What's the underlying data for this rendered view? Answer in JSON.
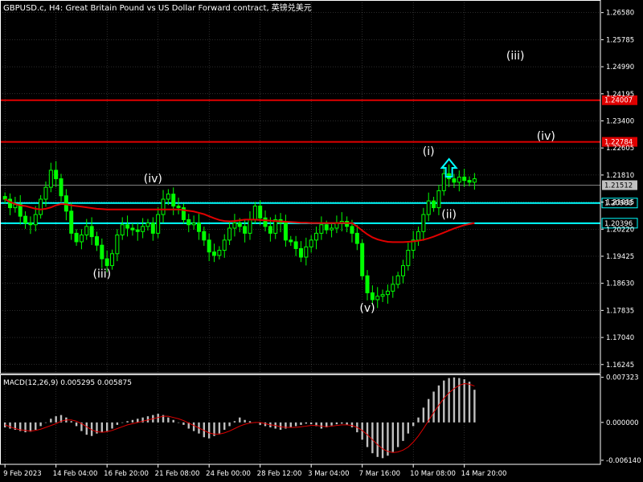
{
  "header": {
    "title": "GBPUSD.c, H4:  Great Britain Pound vs US Dollar Forward contract, 英镑兑美元"
  },
  "macd_header": {
    "label": "MACD(12,26,9) 0.005295 0.005875"
  },
  "colors": {
    "background": "#000000",
    "bull_candle": "#00ff00",
    "bear_candle": "#00ff00",
    "grid": "#ffffff",
    "ma_line": "#e00000",
    "red_level": "#e00000",
    "cyan_level": "#00ffff",
    "price_label": "#c0c0c0",
    "macd_hist": "#c0c0c0",
    "macd_signal": "#e00000",
    "arrow": "#00ffff"
  },
  "chart_data": [
    {
      "type": "candlestick",
      "symbol": "GBPUSD.c",
      "timeframe": "H4",
      "ylim": [
        1.1598,
        1.2695
      ],
      "y_ticks": [
        "1.26580",
        "1.25785",
        "1.24990",
        "1.24195",
        "1.23400",
        "1.22605",
        "1.21810",
        "1.21015",
        "1.20220",
        "1.19425",
        "1.18630",
        "1.17835",
        "1.17040",
        "1.16245"
      ],
      "x_ticks": [
        "9 Feb 2023",
        "14 Feb 04:00",
        "16 Feb 20:00",
        "21 Feb 08:00",
        "24 Feb 00:00",
        "28 Feb 12:00",
        "3 Mar 04:00",
        "7 Mar 16:00",
        "10 Mar 08:00",
        "14 Mar 20:00"
      ],
      "closes": [
        1.211,
        1.2085,
        1.2095,
        1.206,
        1.204,
        1.2035,
        1.2065,
        1.211,
        1.2145,
        1.2195,
        1.217,
        1.212,
        1.2075,
        1.201,
        1.1985,
        1.2005,
        1.203,
        1.2,
        1.1975,
        1.1935,
        1.1915,
        1.195,
        1.2005,
        1.2035,
        1.2025,
        1.202,
        1.2015,
        1.203,
        1.204,
        1.201,
        1.2065,
        1.211,
        1.2125,
        1.209,
        1.2085,
        1.205,
        1.2035,
        1.204,
        1.2015,
        1.199,
        1.1955,
        1.1945,
        1.196,
        1.199,
        1.2025,
        1.204,
        1.203,
        1.201,
        1.205,
        1.209,
        1.2055,
        1.203,
        1.201,
        1.205,
        1.204,
        1.199,
        1.1985,
        1.1965,
        1.194,
        1.197,
        1.199,
        1.201,
        1.2035,
        1.202,
        1.2025,
        1.204,
        1.2045,
        1.203,
        1.201,
        1.198,
        1.1885,
        1.1835,
        1.1815,
        1.1825,
        1.183,
        1.184,
        1.186,
        1.1885,
        1.1915,
        1.196,
        1.199,
        1.2015,
        1.2065,
        1.2105,
        1.2085,
        1.2135,
        1.2185,
        1.217,
        1.216,
        1.2175,
        1.2165,
        1.216,
        1.217
      ],
      "moving_average": [
        1.211,
        1.2102,
        1.2096,
        1.2092,
        1.209,
        1.2086,
        1.2082,
        1.208,
        1.2082,
        1.2086,
        1.2092,
        1.2096,
        1.2095,
        1.2092,
        1.209,
        1.2088,
        1.2086,
        1.2084,
        1.2082,
        1.2081,
        1.208,
        1.208,
        1.208,
        1.208,
        1.208,
        1.208,
        1.208,
        1.208,
        1.208,
        1.208,
        1.208,
        1.208,
        1.208,
        1.208,
        1.208,
        1.2078,
        1.2076,
        1.2074,
        1.207,
        1.2066,
        1.206,
        1.2054,
        1.2049,
        1.2046,
        1.2045,
        1.2046,
        1.2048,
        1.205,
        1.205,
        1.205,
        1.2049,
        1.2048,
        1.2047,
        1.2046,
        1.2045,
        1.2044,
        1.2043,
        1.2042,
        1.2041,
        1.2041,
        1.204,
        1.204,
        1.204,
        1.204,
        1.204,
        1.204,
        1.204,
        1.204,
        1.204,
        1.203,
        1.2018,
        1.2007,
        1.1998,
        1.1992,
        1.1988,
        1.1985,
        1.1984,
        1.1984,
        1.1984,
        1.1985,
        1.1986,
        1.1988,
        1.1991,
        1.1995,
        1.2,
        1.2006,
        1.2012,
        1.2018,
        1.2024,
        1.2029,
        1.2034,
        1.2037,
        1.204
      ],
      "levels": [
        {
          "price": 1.24007,
          "label": "1.24007",
          "color": "#e00000"
        },
        {
          "price": 1.22784,
          "label": "1.22784",
          "color": "#e00000"
        },
        {
          "price": 1.20988,
          "label": "1.20988",
          "color": "#00ffff"
        },
        {
          "price": 1.20396,
          "label": "1.20396",
          "color": "#00ffff"
        }
      ],
      "current_price": {
        "price": 1.21512,
        "label": "1.21512"
      },
      "annotations": [
        {
          "text": "(iv)",
          "bar": 29,
          "price": 1.216
        },
        {
          "text": "(iii)",
          "bar": 19,
          "price": 1.188
        },
        {
          "text": "(v)",
          "bar": 71,
          "price": 1.178
        },
        {
          "text": "(i)",
          "bar": 83,
          "price": 1.224
        },
        {
          "text": "(ii)",
          "bar": 87,
          "price": 1.2055
        },
        {
          "text": "(iii)",
          "bar": 100,
          "price": 1.252
        },
        {
          "text": "(iv)",
          "bar": 106,
          "price": 1.2285
        }
      ],
      "arrow": {
        "bar": 87,
        "price": 1.2195,
        "direction": "up"
      }
    },
    {
      "type": "bar",
      "name": "MACD(12,26,9)",
      "ylim": [
        -0.0068,
        0.0078
      ],
      "y_ticks": [
        "0.007323",
        "0.000000",
        "-0.006140"
      ],
      "values": [
        -0.0008,
        -0.001,
        -0.0012,
        -0.0014,
        -0.0016,
        -0.0015,
        -0.0012,
        -0.0006,
        0.0,
        0.0006,
        0.001,
        0.0012,
        0.0008,
        0.0002,
        -0.0006,
        -0.0014,
        -0.002,
        -0.0022,
        -0.0018,
        -0.0016,
        -0.0014,
        -0.001,
        -0.0004,
        0.0,
        0.0002,
        0.0004,
        0.0006,
        0.0008,
        0.001,
        0.0012,
        0.0014,
        0.0012,
        0.0008,
        0.0004,
        0.0,
        -0.0004,
        -0.001,
        -0.0014,
        -0.0018,
        -0.0024,
        -0.0026,
        -0.0022,
        -0.0018,
        -0.0012,
        -0.0006,
        0.0002,
        0.0008,
        0.0004,
        0.0002,
        0.0,
        -0.0004,
        -0.0006,
        -0.0008,
        -0.001,
        -0.0012,
        -0.001,
        -0.0008,
        -0.0006,
        -0.0004,
        -0.0002,
        -0.0003,
        -0.0006,
        -0.001,
        -0.0008,
        -0.0005,
        -0.0003,
        -0.0002,
        -0.0004,
        -0.0008,
        -0.0016,
        -0.0028,
        -0.004,
        -0.005,
        -0.0056,
        -0.0058,
        -0.0054,
        -0.0048,
        -0.004,
        -0.003,
        -0.0018,
        -0.0006,
        0.0008,
        0.0024,
        0.0038,
        0.005,
        0.006,
        0.0068,
        0.0072,
        0.0073,
        0.0072,
        0.007,
        0.0066,
        0.0053
      ],
      "signal": [
        -0.0004,
        -0.0007,
        -0.001,
        -0.0012,
        -0.0013,
        -0.0014,
        -0.0013,
        -0.0011,
        -0.0008,
        -0.0005,
        -0.0002,
        0.0002,
        0.0004,
        0.0004,
        0.0002,
        -0.0002,
        -0.0007,
        -0.0012,
        -0.0015,
        -0.0016,
        -0.0015,
        -0.0013,
        -0.001,
        -0.0007,
        -0.0004,
        -0.0002,
        0.0,
        0.0002,
        0.0004,
        0.0006,
        0.0008,
        0.001,
        0.001,
        0.0008,
        0.0006,
        0.0003,
        -0.0001,
        -0.0005,
        -0.0009,
        -0.0013,
        -0.0017,
        -0.0019,
        -0.0019,
        -0.0017,
        -0.0014,
        -0.001,
        -0.0006,
        -0.0003,
        -0.0001,
        0.0,
        0.0,
        -0.0002,
        -0.0004,
        -0.0005,
        -0.0007,
        -0.0008,
        -0.0008,
        -0.0008,
        -0.0007,
        -0.0006,
        -0.0005,
        -0.0005,
        -0.0006,
        -0.0007,
        -0.0006,
        -0.0005,
        -0.0004,
        -0.0004,
        -0.0005,
        -0.0008,
        -0.0013,
        -0.002,
        -0.0028,
        -0.0036,
        -0.0043,
        -0.0047,
        -0.0049,
        -0.0048,
        -0.0045,
        -0.004,
        -0.0032,
        -0.0022,
        -0.001,
        0.0003,
        0.0016,
        0.0028,
        0.0039,
        0.0048,
        0.0055,
        0.006,
        0.0063,
        0.0062,
        0.0059
      ]
    }
  ]
}
